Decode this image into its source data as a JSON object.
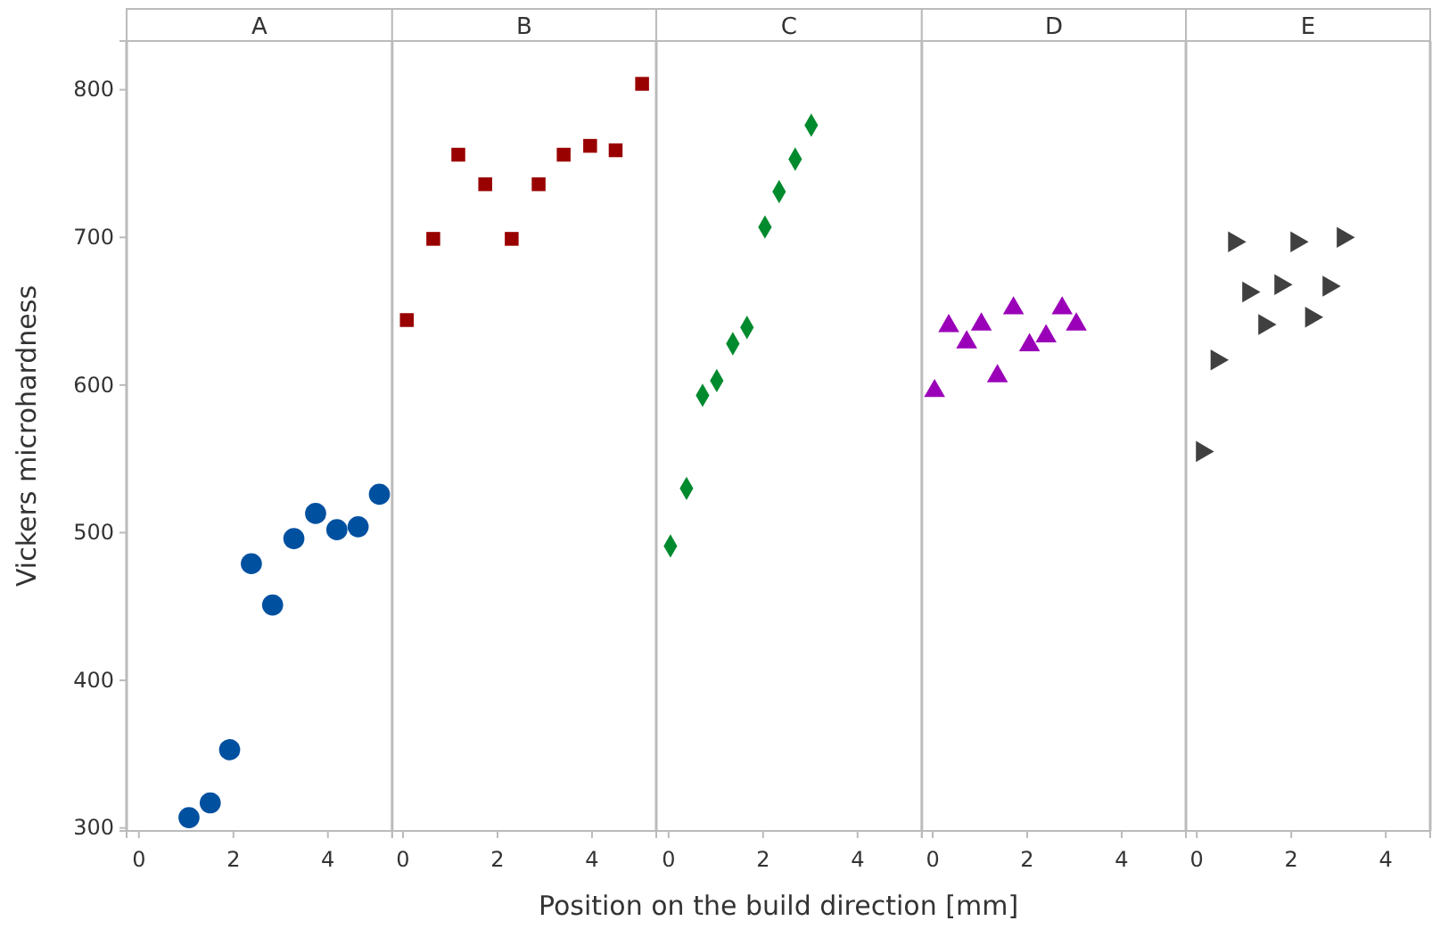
{
  "chart_data": [
    {
      "type": "scatter",
      "title": "A",
      "ylabel": "Vickers microhardness",
      "xlim": [
        -0.26,
        5.36
      ],
      "xticks": [
        0,
        2,
        4
      ],
      "ylim": [
        298,
        833
      ],
      "yticks": [
        300,
        400,
        500,
        600,
        700,
        800
      ],
      "marker": "circle",
      "grid": false,
      "series": [
        {
          "color": "#0050a0",
          "x": [
            1.06,
            1.51,
            1.92,
            2.38,
            2.83,
            3.28,
            3.74,
            4.19,
            4.64,
            5.09
          ],
          "values": [
            307,
            317,
            353,
            479,
            451,
            496,
            513,
            502,
            504,
            526
          ]
        }
      ]
    },
    {
      "type": "scatter",
      "title": "B",
      "xlim": [
        -0.23,
        5.36
      ],
      "xticks": [
        0,
        2,
        4
      ],
      "ylim": [
        298,
        833
      ],
      "tick_labels": "x",
      "marker": "square",
      "grid": false,
      "series": [
        {
          "color": "#990000",
          "x": [
            0.08,
            0.64,
            1.17,
            1.74,
            2.3,
            2.87,
            3.4,
            3.96,
            4.5,
            5.06
          ],
          "values": [
            644,
            699,
            756,
            736,
            699,
            736,
            756,
            762,
            759,
            804
          ]
        }
      ]
    },
    {
      "type": "scatter",
      "title": "C",
      "xlabel": "Position on the build direction [mm]",
      "xlim": [
        -0.26,
        5.36
      ],
      "xticks": [
        0,
        2,
        4
      ],
      "ylim": [
        298,
        833
      ],
      "tick_labels": "x",
      "marker": "diamond",
      "grid": false,
      "series": [
        {
          "color": "#008a2e",
          "x": [
            0.04,
            0.38,
            0.72,
            1.02,
            1.36,
            1.66,
            2.04,
            2.34,
            2.68,
            3.02
          ],
          "values": [
            491,
            530,
            593,
            603,
            628,
            639,
            707,
            731,
            753,
            776
          ]
        }
      ]
    },
    {
      "type": "scatter",
      "title": "D",
      "xlim": [
        -0.23,
        5.36
      ],
      "xticks": [
        0,
        2,
        4
      ],
      "ylim": [
        298,
        833
      ],
      "tick_labels": "x",
      "marker": "triangle",
      "grid": false,
      "series": [
        {
          "color": "#9a00b8",
          "x": [
            0.04,
            0.34,
            0.72,
            1.03,
            1.37,
            1.71,
            2.05,
            2.4,
            2.74,
            3.04
          ],
          "values": [
            596,
            640,
            629,
            641,
            606,
            652,
            627,
            633,
            652,
            641
          ]
        }
      ]
    },
    {
      "type": "scatter",
      "title": "E",
      "xlim": [
        -0.23,
        4.94
      ],
      "xticks": [
        0,
        2,
        4
      ],
      "ylim": [
        298,
        833
      ],
      "tick_labels": "x",
      "marker": "triangle-right",
      "grid": false,
      "series": [
        {
          "color": "#404040",
          "x": [
            0.11,
            0.42,
            0.79,
            1.09,
            1.43,
            1.77,
            2.11,
            2.42,
            2.79,
            3.09
          ],
          "values": [
            555,
            617,
            697,
            663,
            641,
            668,
            697,
            646,
            667,
            700
          ]
        }
      ]
    }
  ]
}
